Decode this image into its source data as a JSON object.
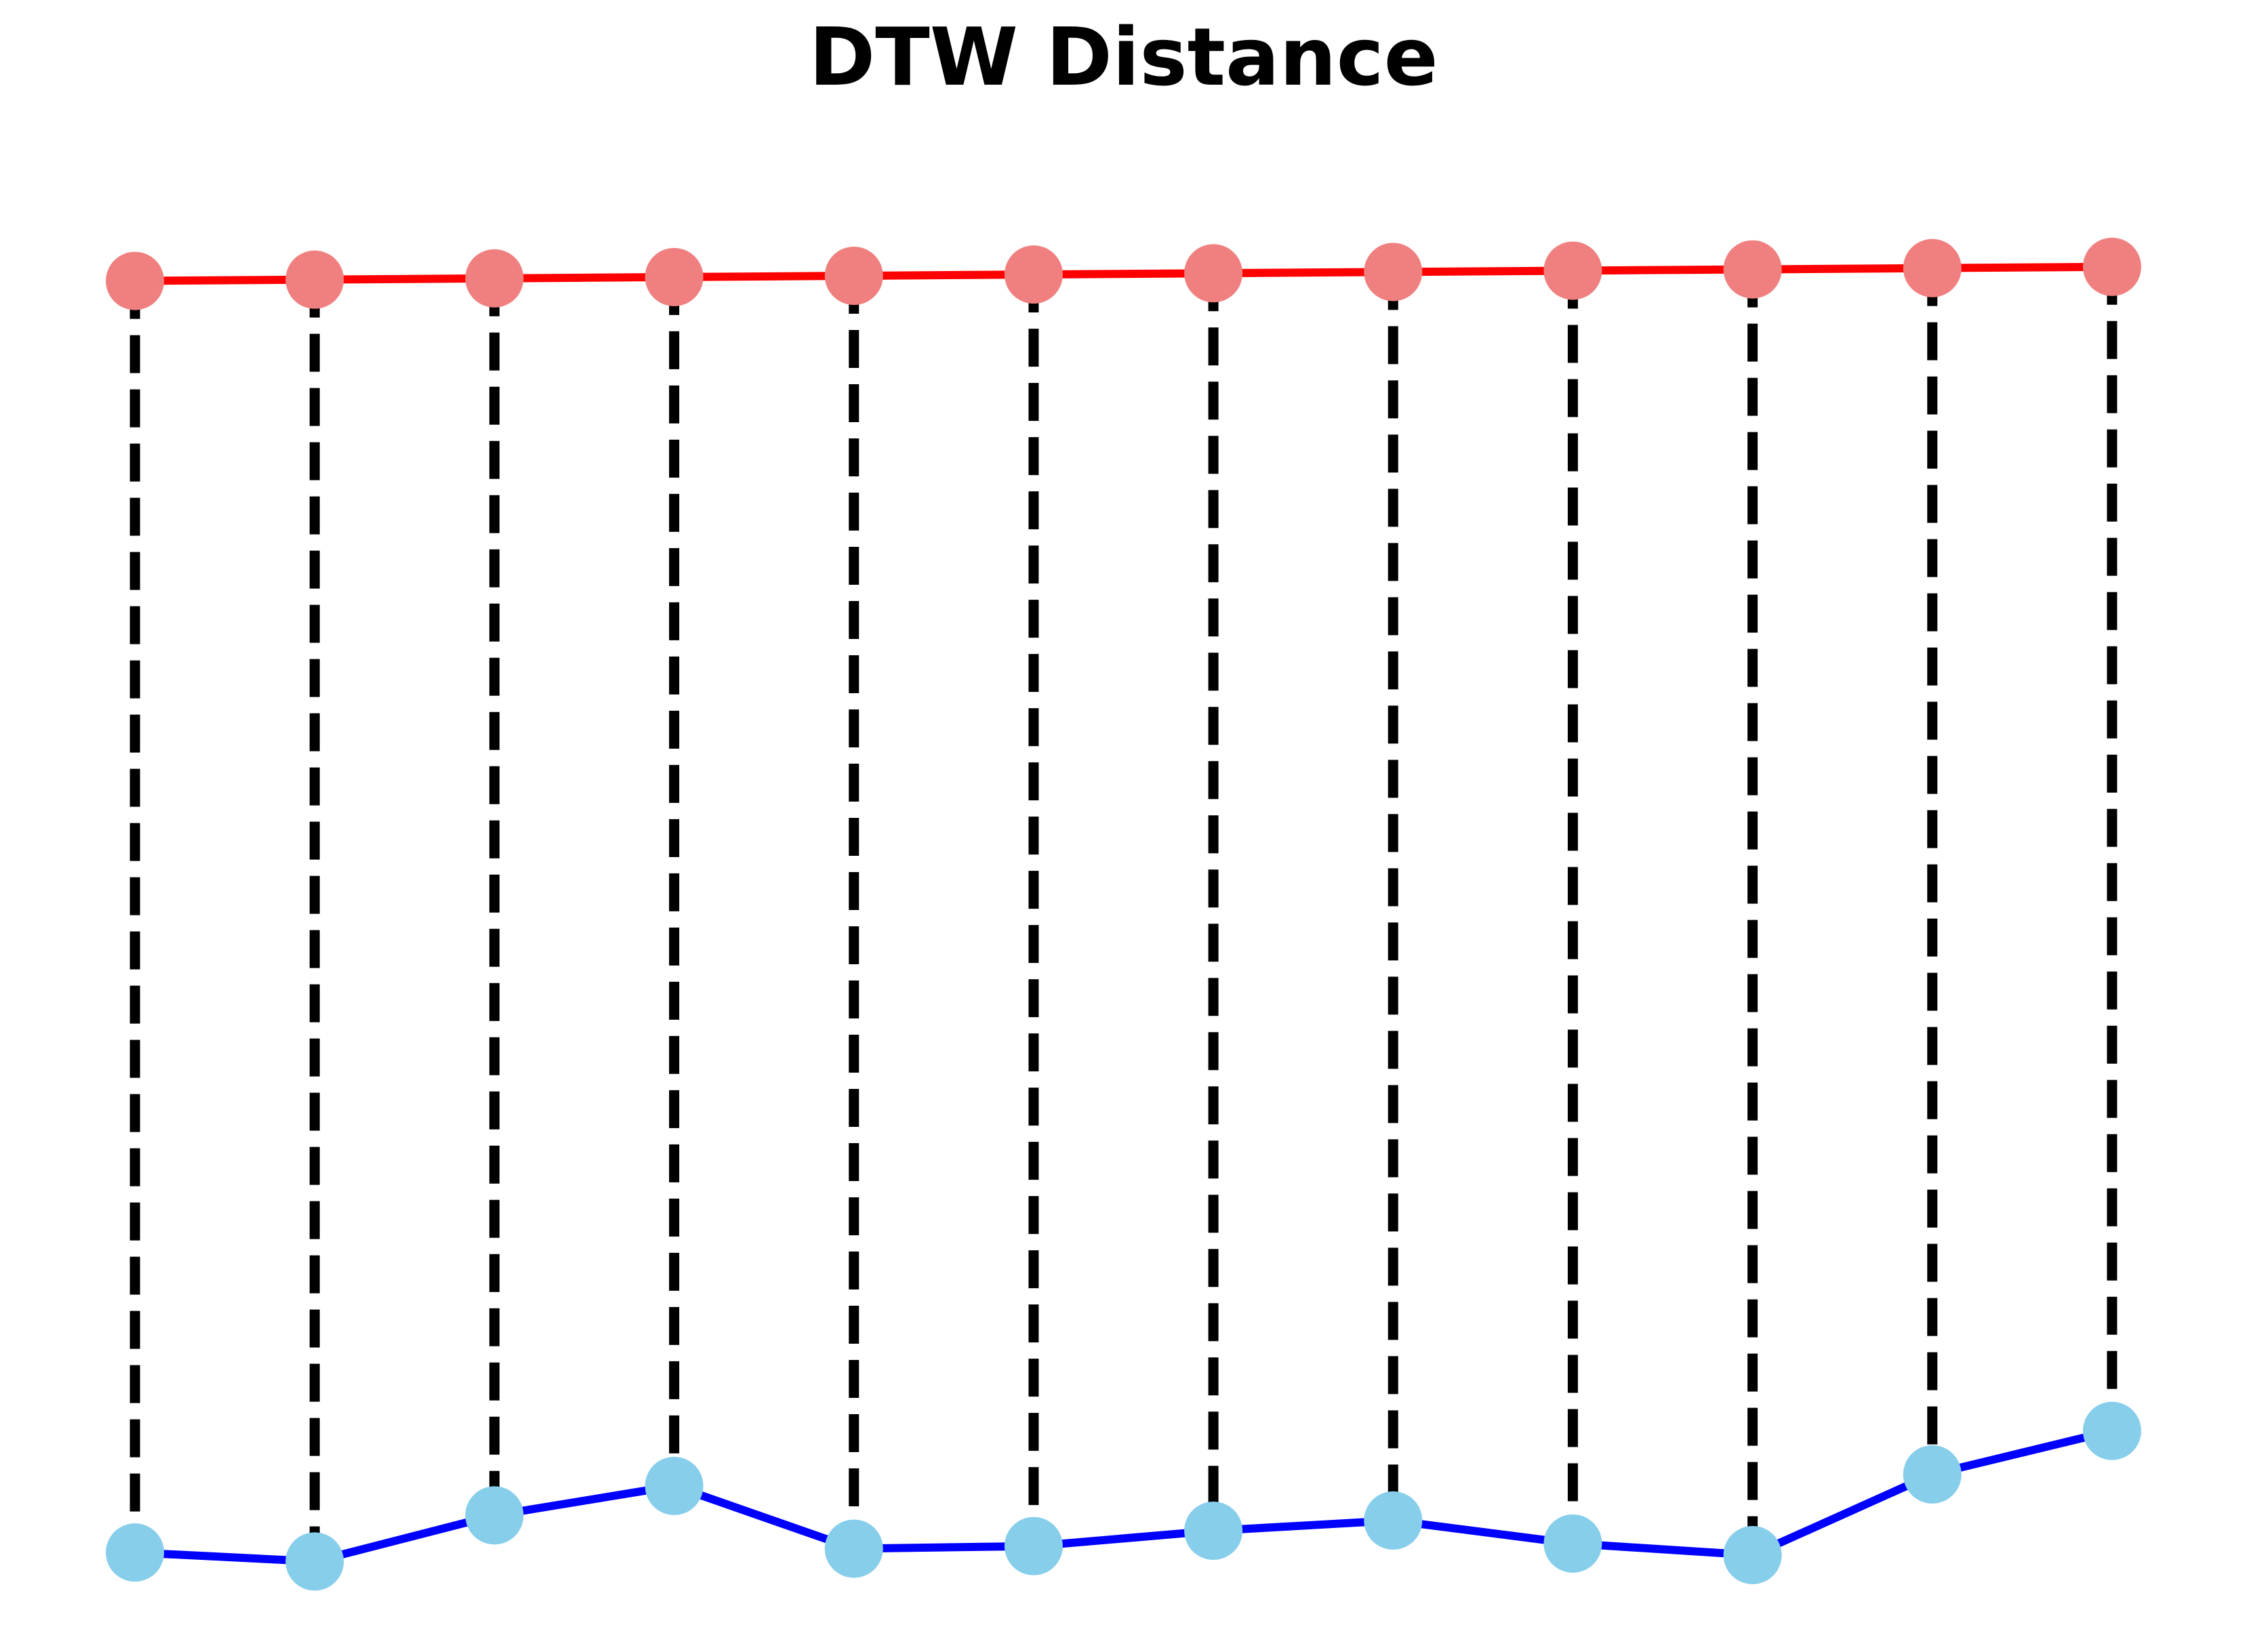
{
  "chart_data": {
    "type": "line",
    "title": "DTW Distance",
    "x": [
      0,
      1,
      2,
      3,
      4,
      5,
      6,
      7,
      8,
      9,
      10,
      11
    ],
    "series": [
      {
        "values": [
          1.0,
          1.001,
          1.002,
          1.003,
          1.004,
          1.005,
          1.006,
          1.007,
          1.008,
          1.009,
          1.01,
          1.011
        ],
        "line_color": "#ff0000",
        "marker_color": "#f08080"
      },
      {
        "values": [
          0.007,
          0.0,
          0.036,
          0.059,
          0.01,
          0.012,
          0.024,
          0.032,
          0.014,
          0.005,
          0.068,
          0.102
        ],
        "line_color": "#0000ff",
        "marker_color": "#87ceeb"
      }
    ],
    "alignment": [
      [
        0,
        0
      ],
      [
        1,
        1
      ],
      [
        2,
        2
      ],
      [
        3,
        3
      ],
      [
        4,
        4
      ],
      [
        5,
        5
      ],
      [
        6,
        6
      ],
      [
        7,
        7
      ],
      [
        8,
        8
      ],
      [
        9,
        9
      ],
      [
        10,
        10
      ],
      [
        11,
        11
      ]
    ],
    "alignment_color": "#000000",
    "xlim": [
      -0.6,
      11.6
    ],
    "ylim": [
      -0.04,
      1.14
    ],
    "axis": "off",
    "grid": false
  }
}
